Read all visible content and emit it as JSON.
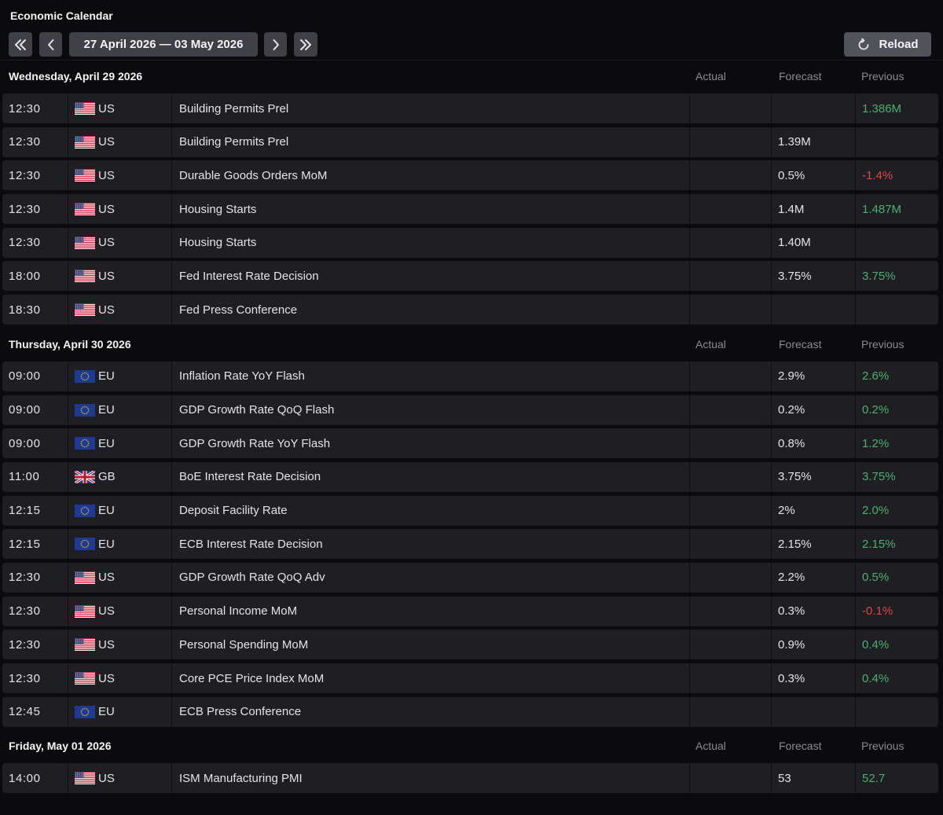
{
  "app": {
    "title": "Economic Calendar"
  },
  "toolbar": {
    "range": "27 April 2026 — 03 May 2026",
    "reload_label": "Reload"
  },
  "columns": {
    "actual": "Actual",
    "forecast": "Forecast",
    "previous": "Previous"
  },
  "colors": {
    "positive": "#4caf6e",
    "negative": "#e0454b",
    "row_bg": "#1f1f23",
    "background": "#0b0b0d"
  },
  "days": [
    {
      "title": "Wednesday, April 29 2026",
      "events": [
        {
          "time": "12:30",
          "country": "US",
          "flag": "us-flag-icon",
          "event": "Building Permits Prel",
          "actual": "",
          "forecast": "",
          "previous": "1.386M",
          "previous_tone": "pos"
        },
        {
          "time": "12:30",
          "country": "US",
          "flag": "us-flag-icon",
          "event": "Building Permits Prel",
          "actual": "",
          "forecast": "1.39M",
          "previous": "",
          "previous_tone": ""
        },
        {
          "time": "12:30",
          "country": "US",
          "flag": "us-flag-icon",
          "event": "Durable Goods Orders MoM",
          "actual": "",
          "forecast": "0.5%",
          "previous": "-1.4%",
          "previous_tone": "neg"
        },
        {
          "time": "12:30",
          "country": "US",
          "flag": "us-flag-icon",
          "event": "Housing Starts",
          "actual": "",
          "forecast": "1.4M",
          "previous": "1.487M",
          "previous_tone": "pos"
        },
        {
          "time": "12:30",
          "country": "US",
          "flag": "us-flag-icon",
          "event": "Housing Starts",
          "actual": "",
          "forecast": "1.40M",
          "previous": "",
          "previous_tone": ""
        },
        {
          "time": "18:00",
          "country": "US",
          "flag": "us-flag-icon",
          "event": "Fed Interest Rate Decision",
          "actual": "",
          "forecast": "3.75%",
          "previous": "3.75%",
          "previous_tone": "pos"
        },
        {
          "time": "18:30",
          "country": "US",
          "flag": "us-flag-icon",
          "event": "Fed Press Conference",
          "actual": "",
          "forecast": "",
          "previous": "",
          "previous_tone": ""
        }
      ]
    },
    {
      "title": "Thursday, April 30 2026",
      "events": [
        {
          "time": "09:00",
          "country": "EU",
          "flag": "eu-flag-icon",
          "event": "Inflation Rate YoY Flash",
          "actual": "",
          "forecast": "2.9%",
          "previous": "2.6%",
          "previous_tone": "pos"
        },
        {
          "time": "09:00",
          "country": "EU",
          "flag": "eu-flag-icon",
          "event": "GDP Growth Rate QoQ Flash",
          "actual": "",
          "forecast": "0.2%",
          "previous": "0.2%",
          "previous_tone": "pos"
        },
        {
          "time": "09:00",
          "country": "EU",
          "flag": "eu-flag-icon",
          "event": "GDP Growth Rate YoY Flash",
          "actual": "",
          "forecast": "0.8%",
          "previous": "1.2%",
          "previous_tone": "pos"
        },
        {
          "time": "11:00",
          "country": "GB",
          "flag": "gb-flag-icon",
          "event": "BoE Interest Rate Decision",
          "actual": "",
          "forecast": "3.75%",
          "previous": "3.75%",
          "previous_tone": "pos"
        },
        {
          "time": "12:15",
          "country": "EU",
          "flag": "eu-flag-icon",
          "event": "Deposit Facility Rate",
          "actual": "",
          "forecast": "2%",
          "previous": "2.0%",
          "previous_tone": "pos"
        },
        {
          "time": "12:15",
          "country": "EU",
          "flag": "eu-flag-icon",
          "event": "ECB Interest Rate Decision",
          "actual": "",
          "forecast": "2.15%",
          "previous": "2.15%",
          "previous_tone": "pos"
        },
        {
          "time": "12:30",
          "country": "US",
          "flag": "us-flag-icon",
          "event": "GDP Growth Rate QoQ Adv",
          "actual": "",
          "forecast": "2.2%",
          "previous": "0.5%",
          "previous_tone": "pos"
        },
        {
          "time": "12:30",
          "country": "US",
          "flag": "us-flag-icon",
          "event": "Personal Income MoM",
          "actual": "",
          "forecast": "0.3%",
          "previous": "-0.1%",
          "previous_tone": "neg"
        },
        {
          "time": "12:30",
          "country": "US",
          "flag": "us-flag-icon",
          "event": "Personal Spending MoM",
          "actual": "",
          "forecast": "0.9%",
          "previous": "0.4%",
          "previous_tone": "pos"
        },
        {
          "time": "12:30",
          "country": "US",
          "flag": "us-flag-icon",
          "event": "Core PCE Price Index MoM",
          "actual": "",
          "forecast": "0.3%",
          "previous": "0.4%",
          "previous_tone": "pos"
        },
        {
          "time": "12:45",
          "country": "EU",
          "flag": "eu-flag-icon",
          "event": "ECB Press Conference",
          "actual": "",
          "forecast": "",
          "previous": "",
          "previous_tone": ""
        }
      ]
    },
    {
      "title": "Friday, May 01 2026",
      "events": [
        {
          "time": "14:00",
          "country": "US",
          "flag": "us-flag-icon",
          "event": "ISM Manufacturing PMI",
          "actual": "",
          "forecast": "53",
          "previous": "52.7",
          "previous_tone": "pos"
        }
      ]
    }
  ]
}
